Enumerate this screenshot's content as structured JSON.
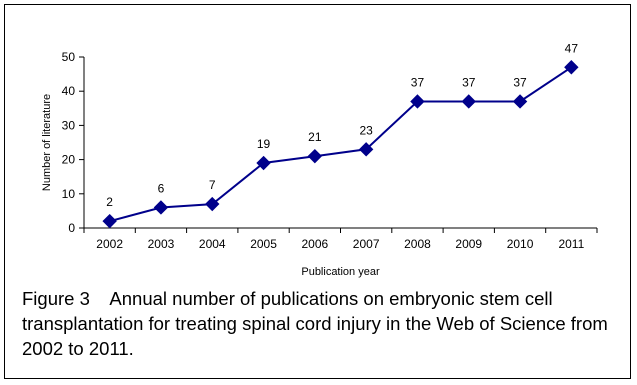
{
  "chart_data": {
    "type": "line",
    "categories": [
      "2002",
      "2003",
      "2004",
      "2005",
      "2006",
      "2007",
      "2008",
      "2009",
      "2010",
      "2011"
    ],
    "series": [
      {
        "values": [
          2,
          6,
          7,
          19,
          21,
          23,
          37,
          37,
          37,
          47
        ],
        "color": "#00008B"
      }
    ],
    "data_labels": [
      "2",
      "6",
      "7",
      "19",
      "21",
      "23",
      "37",
      "37",
      "37",
      "47"
    ],
    "ylim": [
      0,
      50
    ],
    "yticks": [
      "0",
      "10",
      "20",
      "30",
      "40",
      "50"
    ],
    "xlabel": "Publication year",
    "ylabel": "Number of literature",
    "marker": "diamond",
    "grid": false
  },
  "caption": "Figure 3    Annual number of publications on embryonic stem cell transplantation for treating spinal cord injury in the Web of Science from 2002 to 2011."
}
